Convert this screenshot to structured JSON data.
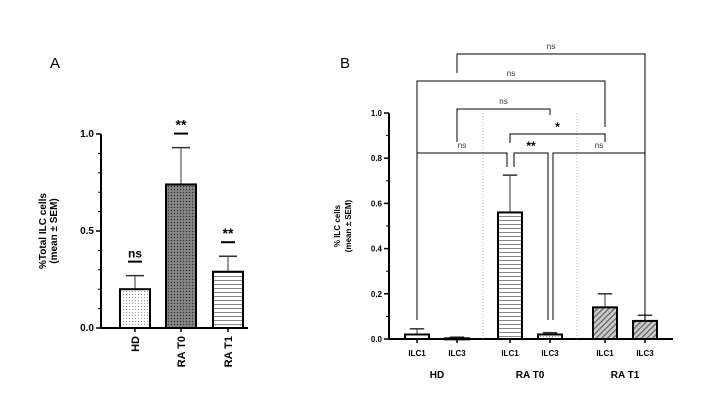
{
  "panels": {
    "a_label": "A",
    "b_label": "B"
  },
  "chart_data": [
    {
      "type": "bar",
      "panel": "A",
      "ylabel_line1": "%Total ILC cells",
      "ylabel_line2": "(mean ± SEM)",
      "ylim": [
        0,
        1.0
      ],
      "yticks": [
        "0.0",
        "0.5",
        "1.0"
      ],
      "ytick_values": [
        0,
        0.5,
        1.0
      ],
      "categories": [
        "HD",
        "RA T0",
        "RA T1"
      ],
      "values": [
        0.2,
        0.74,
        0.29
      ],
      "errors_upper": [
        0.27,
        0.93,
        0.37
      ],
      "annotations": [
        "ns",
        "**",
        "**"
      ],
      "fills": [
        "dots",
        "crosshatch",
        "hlines"
      ]
    },
    {
      "type": "bar",
      "panel": "B",
      "ylabel_line1": "% ILC cells",
      "ylabel_line2": "(mean ± SEM)",
      "ylim": [
        0,
        1.0
      ],
      "yticks": [
        "0.0",
        "0.2",
        "0.4",
        "0.6",
        "0.8",
        "1.0"
      ],
      "ytick_values": [
        0,
        0.2,
        0.4,
        0.6,
        0.8,
        1.0
      ],
      "groups": [
        "HD",
        "RA T0",
        "RA T1"
      ],
      "categories": [
        "ILC1",
        "ILC3",
        "ILC1",
        "ILC3",
        "ILC1",
        "ILC3"
      ],
      "values": [
        0.02,
        0.003,
        0.56,
        0.02,
        0.14,
        0.08
      ],
      "errors_upper": [
        0.045,
        0.008,
        0.725,
        0.028,
        0.2,
        0.105
      ],
      "fills": [
        "white",
        "white",
        "hlines",
        "dots",
        "diag",
        "diag"
      ],
      "comparisons": [
        {
          "from": 1,
          "to": 5,
          "label": "ns"
        },
        {
          "from": 0,
          "to": 4,
          "label": "ns"
        },
        {
          "from": 1,
          "to": 3,
          "label": "ns"
        },
        {
          "from": 2,
          "to": 4,
          "label": "*"
        },
        {
          "from": 0,
          "to": 2,
          "label": "ns"
        },
        {
          "from": 2,
          "to": 3,
          "label": "**"
        },
        {
          "from": 3,
          "to": 5,
          "label": "ns"
        }
      ]
    }
  ]
}
